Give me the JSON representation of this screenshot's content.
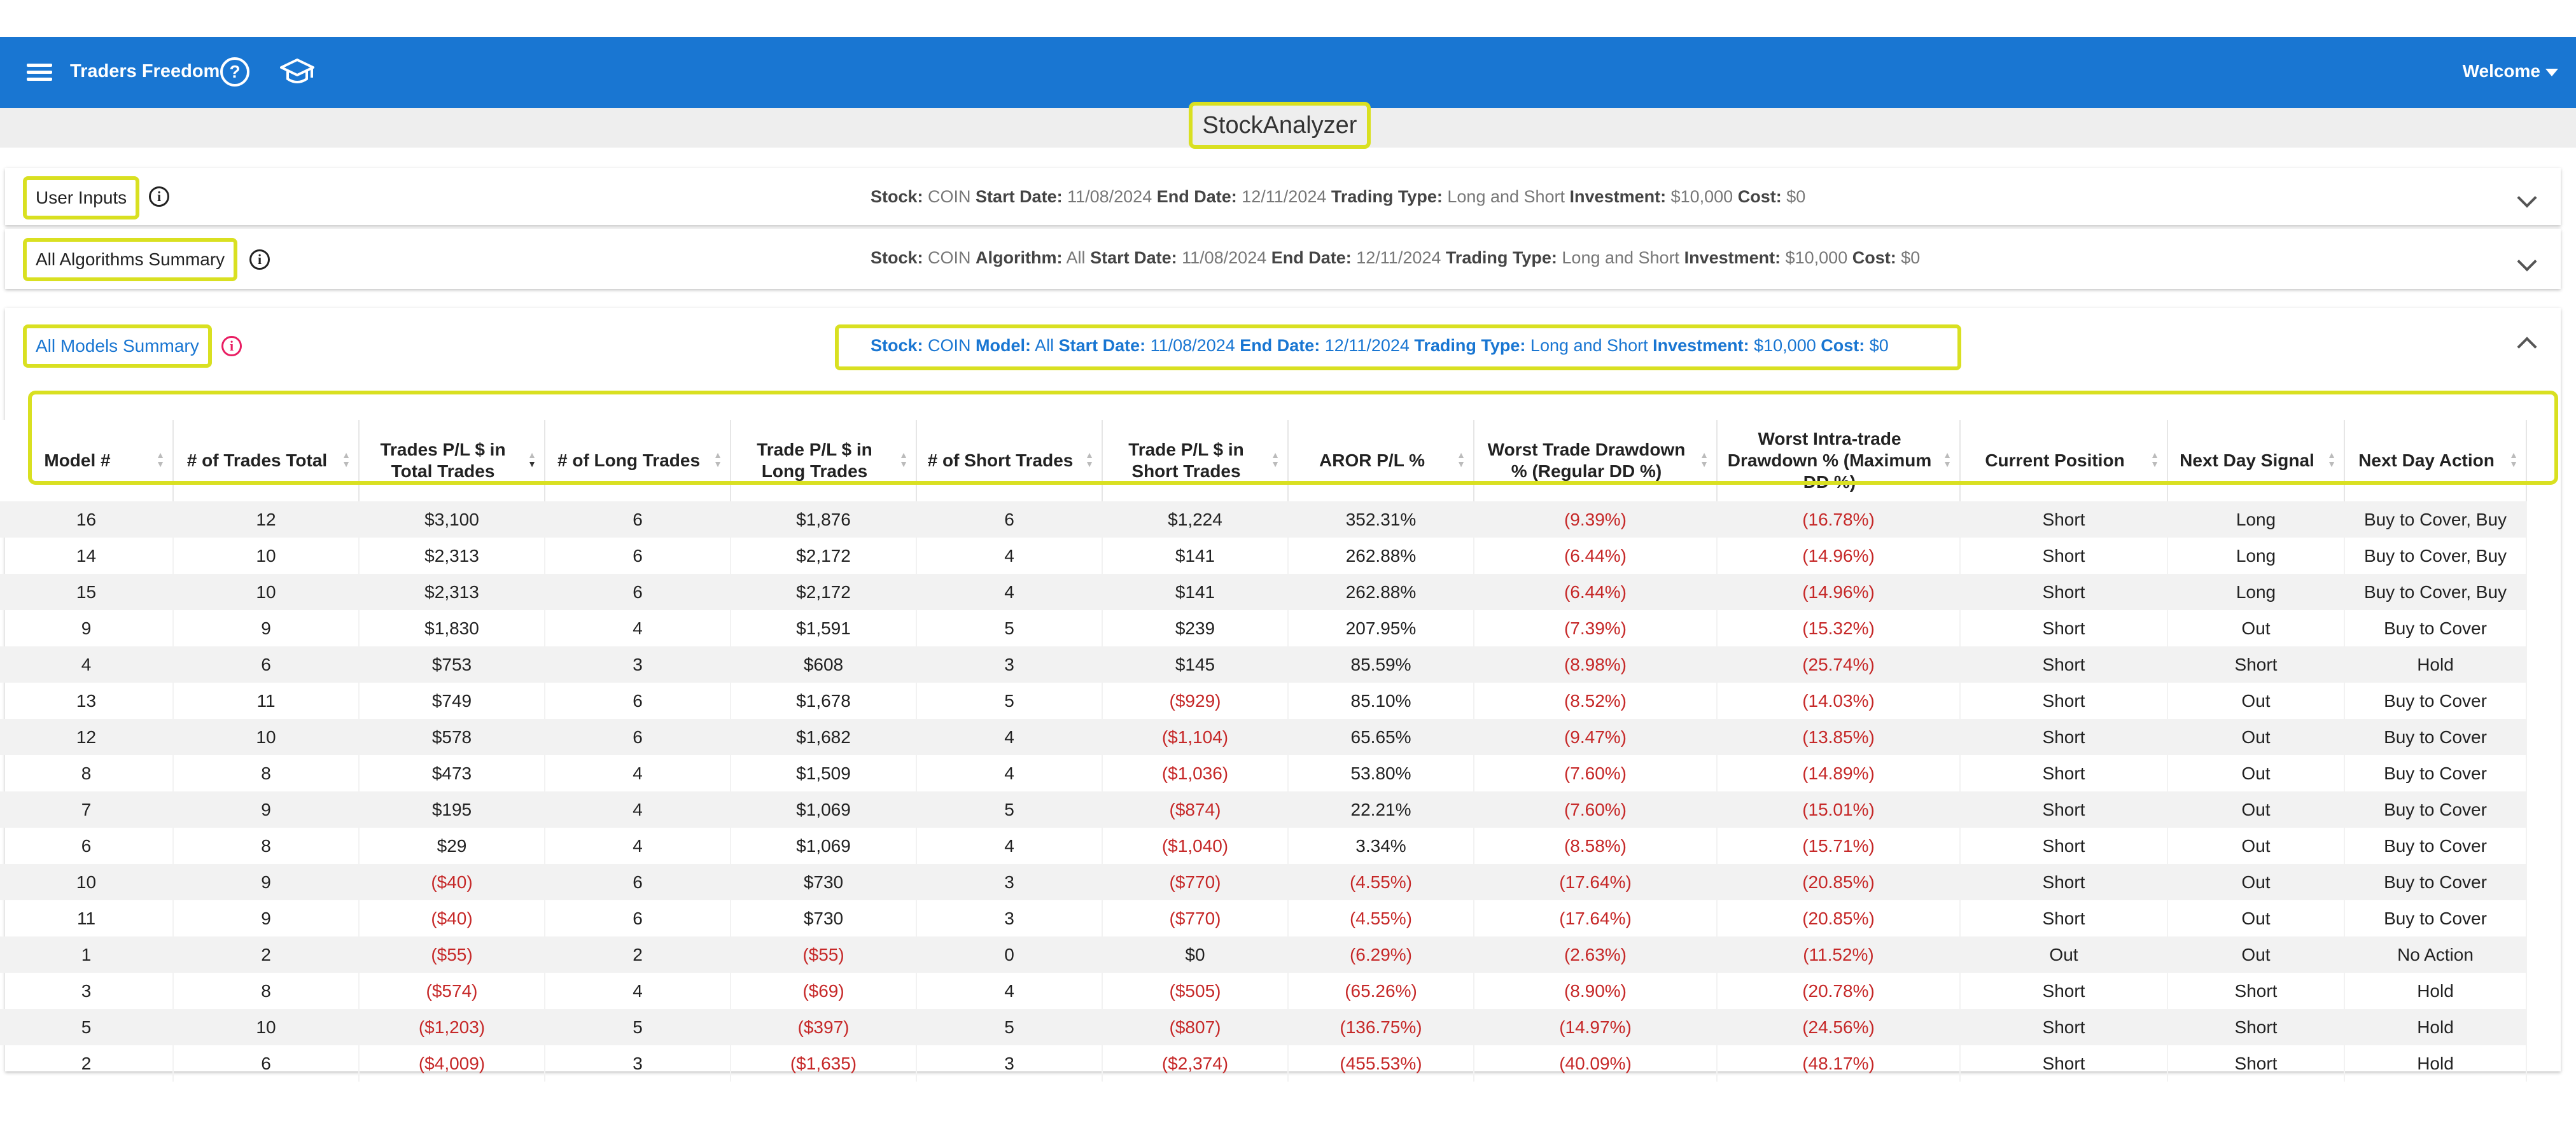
{
  "app": {
    "brand": "Traders Freedom",
    "welcome": "Welcome",
    "page_title": "StockAnalyzer",
    "icons": {
      "menu": "menu-icon",
      "help": "help-circle-icon",
      "learn": "graduation-cap-icon",
      "caret": "caret-down-icon"
    },
    "colors": {
      "appbar": "#1976d2",
      "highlight": "#d9e021",
      "negative": "#c62828"
    }
  },
  "panels": {
    "user_inputs": {
      "label": "User Inputs",
      "summary": [
        {
          "k": "Stock:",
          "v": "COIN"
        },
        {
          "k": "Start Date:",
          "v": "11/08/2024"
        },
        {
          "k": "End Date:",
          "v": "12/11/2024"
        },
        {
          "k": "Trading Type:",
          "v": "Long and Short"
        },
        {
          "k": "Investment:",
          "v": "$10,000"
        },
        {
          "k": "Cost:",
          "v": "$0"
        }
      ]
    },
    "algorithms": {
      "label": "All Algorithms Summary",
      "summary": [
        {
          "k": "Stock:",
          "v": "COIN"
        },
        {
          "k": "Algorithm:",
          "v": "All"
        },
        {
          "k": "Start Date:",
          "v": "11/08/2024"
        },
        {
          "k": "End Date:",
          "v": "12/11/2024"
        },
        {
          "k": "Trading Type:",
          "v": "Long and Short"
        },
        {
          "k": "Investment:",
          "v": "$10,000"
        },
        {
          "k": "Cost:",
          "v": "$0"
        }
      ]
    },
    "models": {
      "label": "All Models Summary",
      "summary": [
        {
          "k": "Stock:",
          "v": "COIN"
        },
        {
          "k": "Model:",
          "v": "All"
        },
        {
          "k": "Start Date:",
          "v": "11/08/2024"
        },
        {
          "k": "End Date:",
          "v": "12/11/2024"
        },
        {
          "k": "Trading Type:",
          "v": "Long and Short"
        },
        {
          "k": "Investment:",
          "v": "$10,000"
        },
        {
          "k": "Cost:",
          "v": "$0"
        }
      ]
    }
  },
  "table": {
    "columns": [
      {
        "label": "Model #",
        "sort": "none"
      },
      {
        "label": "# of Trades Total",
        "sort": "none"
      },
      {
        "label": "Trades P/L $ in Total Trades",
        "sort": "descending"
      },
      {
        "label": "# of Long Trades",
        "sort": "none"
      },
      {
        "label": "Trade P/L $ in Long Trades",
        "sort": "none"
      },
      {
        "label": "# of Short Trades",
        "sort": "none"
      },
      {
        "label": "Trade P/L $ in Short Trades",
        "sort": "none"
      },
      {
        "label": "AROR P/L %",
        "sort": "none"
      },
      {
        "label": "Worst Trade Drawdown % (Regular DD %)",
        "sort": "none"
      },
      {
        "label": "Worst Intra-trade Drawdown % (Maximum DD %)",
        "sort": "none"
      },
      {
        "label": "Current Position",
        "sort": "none"
      },
      {
        "label": "Next Day Signal",
        "sort": "none"
      },
      {
        "label": "Next Day Action",
        "sort": "none"
      }
    ],
    "rows": [
      [
        "16",
        "12",
        "$3,100",
        "6",
        "$1,876",
        "6",
        "$1,224",
        "352.31%",
        "(9.39%)",
        "(16.78%)",
        "Short",
        "Long",
        "Buy to Cover, Buy"
      ],
      [
        "14",
        "10",
        "$2,313",
        "6",
        "$2,172",
        "4",
        "$141",
        "262.88%",
        "(6.44%)",
        "(14.96%)",
        "Short",
        "Long",
        "Buy to Cover, Buy"
      ],
      [
        "15",
        "10",
        "$2,313",
        "6",
        "$2,172",
        "4",
        "$141",
        "262.88%",
        "(6.44%)",
        "(14.96%)",
        "Short",
        "Long",
        "Buy to Cover, Buy"
      ],
      [
        "9",
        "9",
        "$1,830",
        "4",
        "$1,591",
        "5",
        "$239",
        "207.95%",
        "(7.39%)",
        "(15.32%)",
        "Short",
        "Out",
        "Buy to Cover"
      ],
      [
        "4",
        "6",
        "$753",
        "3",
        "$608",
        "3",
        "$145",
        "85.59%",
        "(8.98%)",
        "(25.74%)",
        "Short",
        "Short",
        "Hold"
      ],
      [
        "13",
        "11",
        "$749",
        "6",
        "$1,678",
        "5",
        "($929)",
        "85.10%",
        "(8.52%)",
        "(14.03%)",
        "Short",
        "Out",
        "Buy to Cover"
      ],
      [
        "12",
        "10",
        "$578",
        "6",
        "$1,682",
        "4",
        "($1,104)",
        "65.65%",
        "(9.47%)",
        "(13.85%)",
        "Short",
        "Out",
        "Buy to Cover"
      ],
      [
        "8",
        "8",
        "$473",
        "4",
        "$1,509",
        "4",
        "($1,036)",
        "53.80%",
        "(7.60%)",
        "(14.89%)",
        "Short",
        "Out",
        "Buy to Cover"
      ],
      [
        "7",
        "9",
        "$195",
        "4",
        "$1,069",
        "5",
        "($874)",
        "22.21%",
        "(7.60%)",
        "(15.01%)",
        "Short",
        "Out",
        "Buy to Cover"
      ],
      [
        "6",
        "8",
        "$29",
        "4",
        "$1,069",
        "4",
        "($1,040)",
        "3.34%",
        "(8.58%)",
        "(15.71%)",
        "Short",
        "Out",
        "Buy to Cover"
      ],
      [
        "10",
        "9",
        "($40)",
        "6",
        "$730",
        "3",
        "($770)",
        "(4.55%)",
        "(17.64%)",
        "(20.85%)",
        "Short",
        "Out",
        "Buy to Cover"
      ],
      [
        "11",
        "9",
        "($40)",
        "6",
        "$730",
        "3",
        "($770)",
        "(4.55%)",
        "(17.64%)",
        "(20.85%)",
        "Short",
        "Out",
        "Buy to Cover"
      ],
      [
        "1",
        "2",
        "($55)",
        "2",
        "($55)",
        "0",
        "$0",
        "(6.29%)",
        "(2.63%)",
        "(11.52%)",
        "Out",
        "Out",
        "No Action"
      ],
      [
        "3",
        "8",
        "($574)",
        "4",
        "($69)",
        "4",
        "($505)",
        "(65.26%)",
        "(8.90%)",
        "(20.78%)",
        "Short",
        "Short",
        "Hold"
      ],
      [
        "5",
        "10",
        "($1,203)",
        "5",
        "($397)",
        "5",
        "($807)",
        "(136.75%)",
        "(14.97%)",
        "(24.56%)",
        "Short",
        "Short",
        "Hold"
      ],
      [
        "2",
        "6",
        "($4,009)",
        "3",
        "($1,635)",
        "3",
        "($2,374)",
        "(455.53%)",
        "(40.09%)",
        "(48.17%)",
        "Short",
        "Short",
        "Hold"
      ]
    ]
  }
}
